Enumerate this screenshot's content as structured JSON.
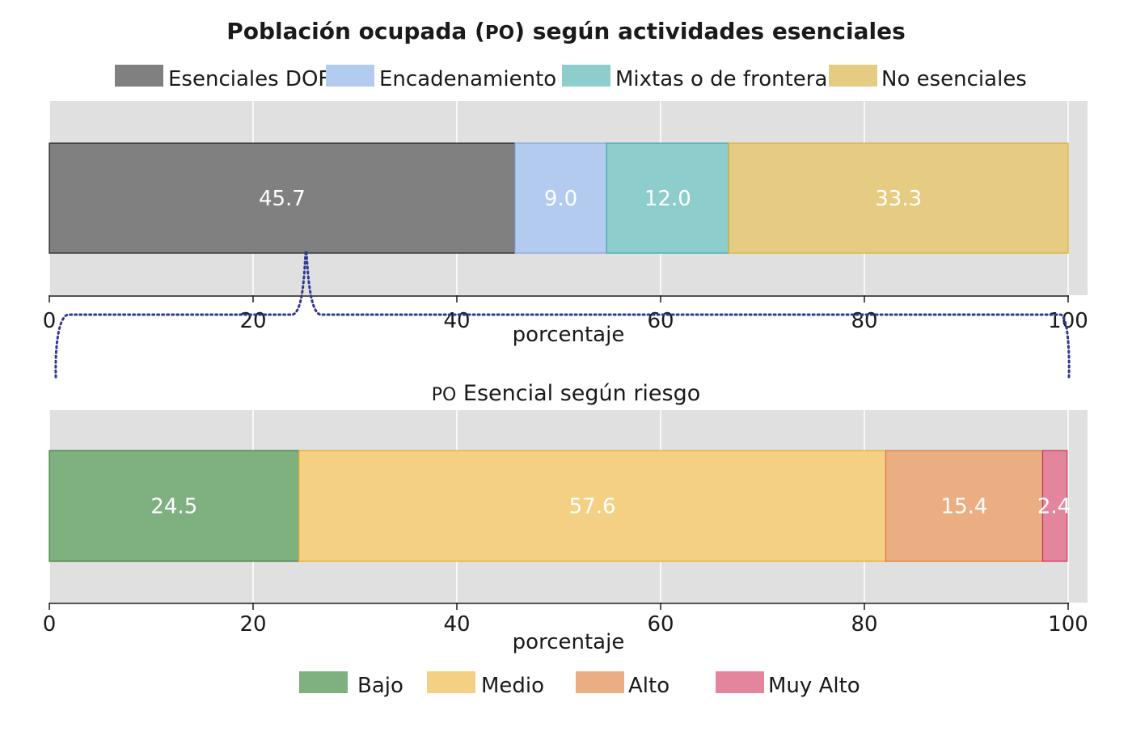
{
  "chart_data": [
    {
      "type": "bar",
      "orientation": "horizontal-stacked",
      "title_parts": [
        "Población ocupada (",
        "PO",
        ") según actividades esenciales"
      ],
      "xlabel": "porcentaje",
      "xlim": [
        0,
        100
      ],
      "xticks": [
        0,
        20,
        40,
        60,
        80,
        100
      ],
      "grid": true,
      "legend_position": "top",
      "series": [
        {
          "name": "Esenciales DOF",
          "value": 45.7,
          "label": "45.7",
          "color": "#808080",
          "stroke": "#1a1a1a"
        },
        {
          "name": "Encadenamiento",
          "value": 9.0,
          "label": "9.0",
          "color": "#b3cbee",
          "stroke": "#7fa3dc"
        },
        {
          "name": "Mixtas o de frontera",
          "value": 12.0,
          "label": "12.0",
          "color": "#8dcdcc",
          "stroke": "#3aa7a5"
        },
        {
          "name": "No esenciales",
          "value": 33.3,
          "label": "33.3",
          "color": "#e6cc82",
          "stroke": "#d9ad3a"
        }
      ]
    },
    {
      "type": "bar",
      "orientation": "horizontal-stacked",
      "title_parts": [
        "PO",
        " Esencial según riesgo"
      ],
      "xlabel": "porcentaje",
      "xlim": [
        0,
        100
      ],
      "xticks": [
        0,
        20,
        40,
        60,
        80,
        100
      ],
      "grid": true,
      "legend_position": "bottom",
      "series": [
        {
          "name": "Bajo",
          "value": 24.5,
          "label": "24.5",
          "color": "#7fb07f",
          "stroke": "#3e7d3e"
        },
        {
          "name": "Medio",
          "value": 57.6,
          "label": "57.6",
          "color": "#f3d083",
          "stroke": "#e8a92a"
        },
        {
          "name": "Alto",
          "value": 15.4,
          "label": "15.4",
          "color": "#ebae82",
          "stroke": "#dd7a3a"
        },
        {
          "name": "Muy Alto",
          "value": 2.4,
          "label": "2.4",
          "color": "#e3869d",
          "stroke": "#cc3355"
        }
      ]
    }
  ],
  "connector_color": "#2f3a8f",
  "background_color": "#e0e0e0",
  "grid_color": "#ffffff"
}
